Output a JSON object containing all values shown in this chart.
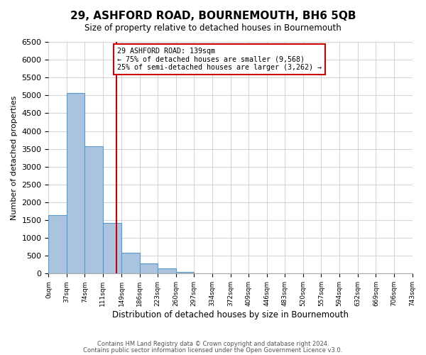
{
  "title": "29, ASHFORD ROAD, BOURNEMOUTH, BH6 5QB",
  "subtitle": "Size of property relative to detached houses in Bournemouth",
  "xlabel": "Distribution of detached houses by size in Bournemouth",
  "ylabel": "Number of detached properties",
  "bar_heights": [
    1650,
    5060,
    3580,
    1420,
    580,
    290,
    140,
    50,
    0,
    0,
    0,
    0,
    0,
    0,
    0,
    0,
    0,
    0,
    0,
    0
  ],
  "bin_edges": [
    0,
    37,
    74,
    111,
    149,
    186,
    223,
    260,
    297,
    334,
    372,
    409,
    446,
    483,
    520,
    557,
    594,
    632,
    669,
    706,
    743
  ],
  "tick_labels": [
    "0sqm",
    "37sqm",
    "74sqm",
    "111sqm",
    "149sqm",
    "186sqm",
    "223sqm",
    "260sqm",
    "297sqm",
    "334sqm",
    "372sqm",
    "409sqm",
    "446sqm",
    "483sqm",
    "520sqm",
    "557sqm",
    "594sqm",
    "632sqm",
    "669sqm",
    "706sqm",
    "743sqm"
  ],
  "bar_color": "#aac4e0",
  "bar_edge_color": "#5a9ac8",
  "vline_x": 139,
  "vline_color": "#cc0000",
  "annotation_title": "29 ASHFORD ROAD: 139sqm",
  "annotation_line1": "← 75% of detached houses are smaller (9,568)",
  "annotation_line2": "25% of semi-detached houses are larger (3,262) →",
  "annotation_box_color": "#cc0000",
  "ylim": [
    0,
    6500
  ],
  "yticks": [
    0,
    500,
    1000,
    1500,
    2000,
    2500,
    3000,
    3500,
    4000,
    4500,
    5000,
    5500,
    6000,
    6500
  ],
  "footer1": "Contains HM Land Registry data © Crown copyright and database right 2024.",
  "footer2": "Contains public sector information licensed under the Open Government Licence v3.0.",
  "background_color": "#ffffff",
  "grid_color": "#cccccc"
}
